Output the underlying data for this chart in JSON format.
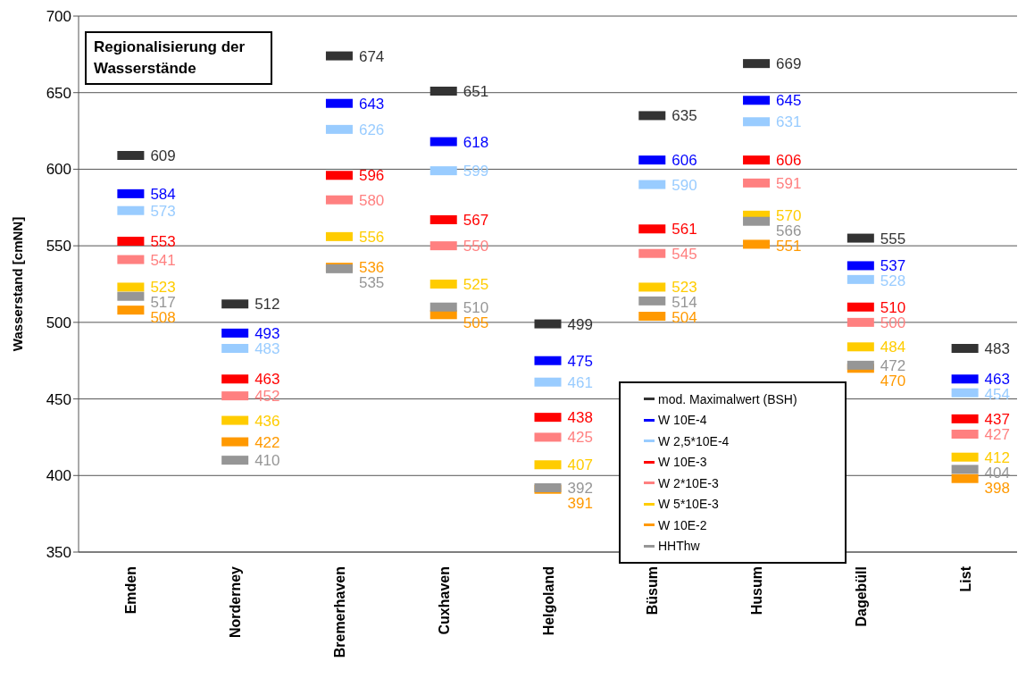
{
  "chart_data": {
    "type": "scatter",
    "title": "Regionalisierung der Wasserstände",
    "ylabel": "Wasserstand [cmNN]",
    "categories": [
      "Emden",
      "Norderney",
      "Bremerhaven",
      "Cuxhaven",
      "Helgoland",
      "Büsum",
      "Husum",
      "Dagebüll",
      "List"
    ],
    "ylim": [
      350,
      700
    ],
    "yticks": [
      350,
      400,
      450,
      500,
      550,
      600,
      650,
      700
    ],
    "grid": "y",
    "marker": "square",
    "legend": "bottom right",
    "data_labels": true,
    "series": [
      {
        "name": "mod. Maximalwert (BSH)",
        "color": "#333333",
        "values": [
          609,
          512,
          674,
          651,
          499,
          635,
          669,
          555,
          483
        ]
      },
      {
        "name": "W 10E-4",
        "color": "#0000ff",
        "values": [
          584,
          493,
          643,
          618,
          475,
          606,
          645,
          537,
          463
        ]
      },
      {
        "name": "W 2,5*10E-4",
        "color": "#99ccff",
        "values": [
          573,
          483,
          626,
          599,
          461,
          590,
          631,
          528,
          454
        ]
      },
      {
        "name": "W 10E-3",
        "color": "#ff0000",
        "values": [
          553,
          463,
          596,
          567,
          438,
          561,
          606,
          510,
          437
        ]
      },
      {
        "name": "W 2*10E-3",
        "color": "#ff8080",
        "values": [
          541,
          452,
          580,
          550,
          425,
          545,
          591,
          500,
          427
        ]
      },
      {
        "name": "W 5*10E-3",
        "color": "#ffcc00",
        "values": [
          523,
          436,
          556,
          525,
          407,
          523,
          570,
          484,
          412
        ]
      },
      {
        "name": "W 10E-2",
        "color": "#ff9900",
        "values": [
          508,
          422,
          536,
          505,
          391,
          504,
          551,
          470,
          398
        ]
      },
      {
        "name": "HHThw",
        "color": "#969696",
        "values": [
          517,
          410,
          535,
          510,
          392,
          514,
          566,
          472,
          404
        ]
      }
    ]
  }
}
